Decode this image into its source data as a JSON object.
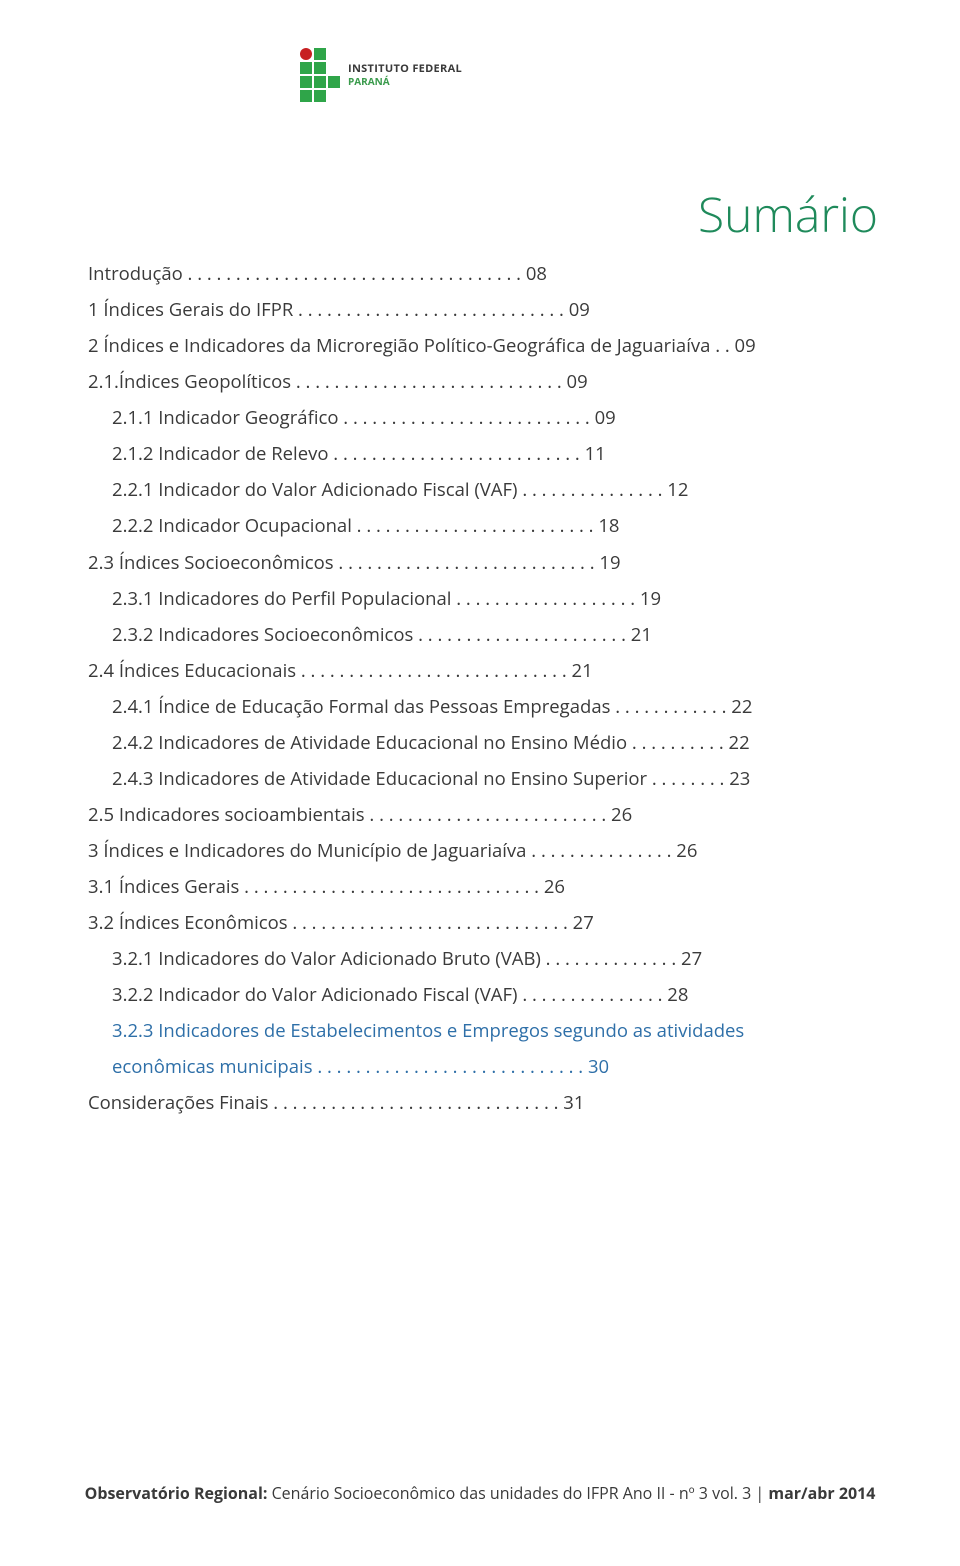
{
  "colors": {
    "title": "#1f8a5b",
    "link": "#2e6fa8",
    "text": "#3a3a3a",
    "logo_red": "#c72022",
    "logo_green": "#2fa549",
    "logo_green_text": "#3a9b4c"
  },
  "logo": {
    "line1": "INSTITUTO FEDERAL",
    "line2": "PARANÁ"
  },
  "title": "Sumário",
  "toc": [
    {
      "indent": 0,
      "text": "Introdução",
      "dots_to": 48,
      "page": "08",
      "link": false
    },
    {
      "indent": 0,
      "text": "1 Índices Gerais do IFPR",
      "dots_to": 48,
      "page": "09",
      "link": false
    },
    {
      "indent": 0,
      "text": "2 Índices e Indicadores da Microregião  Político-Geográfica de Jaguariaíva",
      "dots_to": 2,
      "page": "09",
      "link": false
    },
    {
      "indent": 0,
      "text": "2.1.Índices Geopolíticos",
      "dots_to": 48,
      "page": "09",
      "link": false
    },
    {
      "indent": 1,
      "text": "2.1.1 Indicador Geográfico",
      "dots_to": 46,
      "page": "09",
      "link": false
    },
    {
      "indent": 1,
      "text": "2.1.2 Indicador de Relevo",
      "dots_to": 46,
      "page": "11",
      "link": false
    },
    {
      "indent": 1,
      "text": "2.2.1 Indicador do Valor Adicionado Fiscal (VAF)",
      "dots_to": 46,
      "page": "12",
      "link": false
    },
    {
      "indent": 1,
      "text": "2.2.2 Indicador Ocupacional",
      "dots_to": 46,
      "page": "18",
      "link": false
    },
    {
      "indent": 0,
      "text": "2.3 Índices Socioeconômicos",
      "dots_to": 48,
      "page": "19",
      "link": false
    },
    {
      "indent": 1,
      "text": "2.3.1 Indicadores do Perfil Populacional",
      "dots_to": 46,
      "page": "19",
      "link": false
    },
    {
      "indent": 1,
      "text": "2.3.2 Indicadores Socioeconômicos",
      "dots_to": 46,
      "page": "21",
      "link": false
    },
    {
      "indent": 0,
      "text": "2.4 Índices Educacionais",
      "dots_to": 48,
      "page": "21",
      "link": false
    },
    {
      "indent": 1,
      "text": "2.4.1 Índice de Educação Formal das Pessoas Empregadas",
      "dots_to": 46,
      "page": "22",
      "link": false
    },
    {
      "indent": 1,
      "text": "2.4.2 Indicadores de Atividade Educacional no Ensino Médio",
      "dots_to": 46,
      "page": "22",
      "link": false
    },
    {
      "indent": 1,
      "text": "2.4.3 Indicadores de Atividade Educacional no Ensino Superior",
      "dots_to": 46,
      "page": "23",
      "link": false
    },
    {
      "indent": 0,
      "text": "2.5 Indicadores socioambientais",
      "dots_to": 48,
      "page": "26",
      "link": false
    },
    {
      "indent": 0,
      "text": "3 Índices e Indicadores do Município de Jaguariaíva",
      "dots_to": 48,
      "page": "26",
      "link": false
    },
    {
      "indent": 0,
      "text": "3.1 Índices Gerais",
      "dots_to": 48,
      "page": "26",
      "link": false
    },
    {
      "indent": 0,
      "text": "3.2 Índices Econômicos",
      "dots_to": 48,
      "page": "27",
      "link": false
    },
    {
      "indent": 1,
      "text": "3.2.1 Indicadores do Valor Adicionado Bruto (VAB)",
      "dots_to": 46,
      "page": "27",
      "link": false
    },
    {
      "indent": 1,
      "text": "3.2.2 Indicador do Valor Adicionado Fiscal (VAF)",
      "dots_to": 46,
      "page": "28",
      "link": false
    },
    {
      "indent": 1,
      "text": "3.2.3 Indicadores de Estabelecimentos e Empregos segundo as atividades",
      "dots_to": 0,
      "page": "",
      "link": true
    },
    {
      "indent": 1,
      "text": "econômicas municipais",
      "dots_to": 46,
      "page": "30",
      "link": true
    },
    {
      "indent": 0,
      "text": "Considerações Finais",
      "dots_to": 48,
      "page": "31",
      "link": false
    }
  ],
  "footer": {
    "bold": "Observatório Regional:",
    "rest": " Cenário Socioeconômico das unidades do IFPR    Ano II - nº 3 vol. 3 | ",
    "period": "mar/abr 2014"
  },
  "fonts": {
    "title_size_pt": 36,
    "toc_size_pt": 14,
    "footer_size_pt": 12,
    "logo_size_pt": 8
  }
}
